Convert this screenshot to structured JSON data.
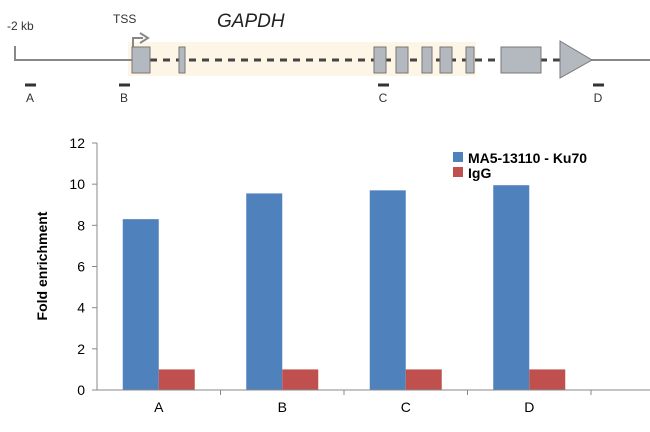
{
  "gene_diagram": {
    "gene_name": "GAPDH",
    "upstream_label": "-2 kb",
    "tss_label": "TSS",
    "primer_sites": [
      "A",
      "B",
      "C",
      "D"
    ]
  },
  "colors": {
    "blue": "#4f81bd",
    "red": "#c0504d",
    "exon": "#b4b9c0",
    "highlight": "#fdf6e6"
  },
  "chart_data": {
    "type": "bar",
    "categories": [
      "A",
      "B",
      "C",
      "D"
    ],
    "series": [
      {
        "name": "MA5-13110 - Ku70",
        "values": [
          8.3,
          9.55,
          9.7,
          9.95
        ]
      },
      {
        "name": "IgG",
        "values": [
          1.0,
          1.0,
          1.0,
          1.0
        ]
      }
    ],
    "ylabel": "Fold enrichment",
    "ylim": [
      0,
      12
    ],
    "yticks": [
      "0",
      "2",
      "4",
      "6",
      "8",
      "10",
      "12"
    ],
    "grid": false,
    "legend_position": "top-right"
  }
}
